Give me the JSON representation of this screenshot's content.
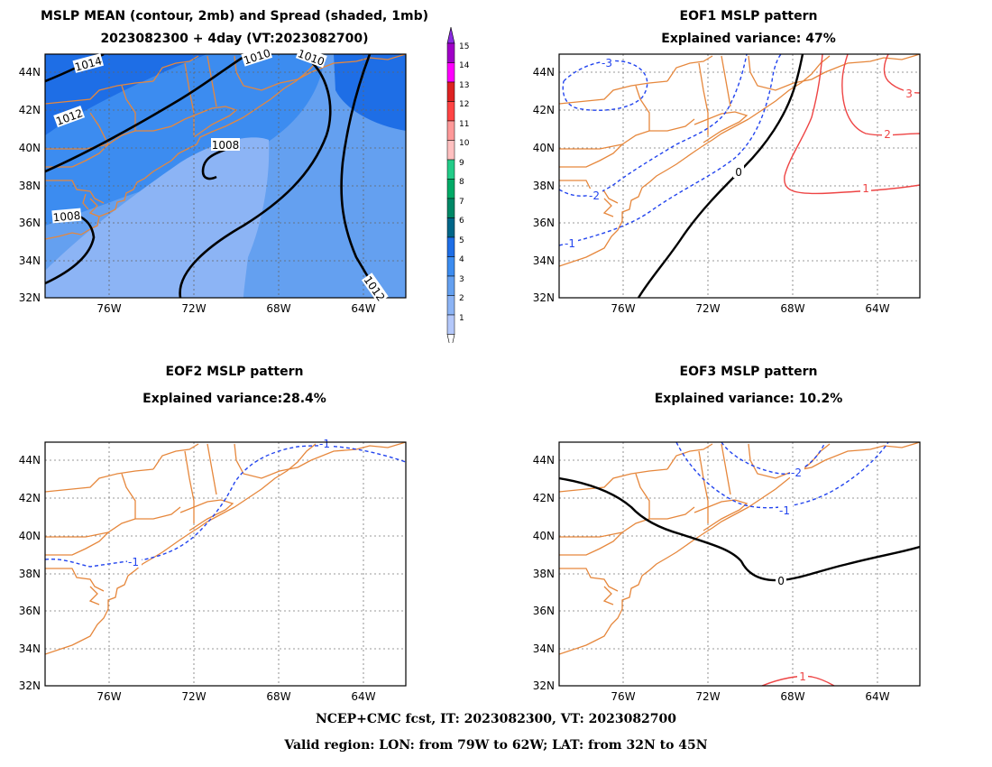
{
  "panels": {
    "mean": {
      "title_line1": "MSLP MEAN (contour, 2mb) and Spread (shaded, 1mb)",
      "title_line2": "2023082300 + 4day (VT:2023082700)",
      "contour_labels": [
        "1014",
        "1012",
        "1010",
        "1010",
        "1008",
        "1008",
        "1012"
      ]
    },
    "eof1": {
      "title_line1": "EOF1 MSLP pattern",
      "title_line2": "Explained variance: 47%",
      "contour_labels": [
        "-3",
        "-2",
        "-1",
        "0",
        "1",
        "2",
        "3"
      ]
    },
    "eof2": {
      "title_line1": "EOF2 MSLP pattern",
      "title_line2": "Explained variance:28.4%",
      "contour_labels": [
        "-1",
        "-1"
      ]
    },
    "eof3": {
      "title_line1": "EOF3 MSLP pattern",
      "title_line2": "Explained variance: 10.2%",
      "contour_labels": [
        "-2",
        "-1",
        "0",
        "1"
      ]
    }
  },
  "axes": {
    "lat_ticks": [
      "44N",
      "42N",
      "40N",
      "38N",
      "36N",
      "34N",
      "32N"
    ],
    "lon_ticks": [
      "76W",
      "72W",
      "68W",
      "64W"
    ]
  },
  "colorbar": {
    "labels": [
      "15",
      "14",
      "13",
      "12",
      "11",
      "10",
      "9",
      "8",
      "7",
      "6",
      "5",
      "4",
      "3",
      "2",
      "1"
    ],
    "colors": [
      "#a000c8",
      "#ff00ff",
      "#dd2222",
      "#ff4444",
      "#ff9999",
      "#ffc0c0",
      "#22cc88",
      "#00aa66",
      "#008866",
      "#006688",
      "#1e6ee6",
      "#3c8cf0",
      "#64a0f0",
      "#8cb4f5",
      "#b4c8fa"
    ],
    "top_arrow": "#8a2be2"
  },
  "colors": {
    "coast": "#e6873c",
    "grid": "#888888",
    "positive": "#ee4444",
    "negative": "#2244ee",
    "zero": "#000000"
  },
  "footer": {
    "line1": "NCEP+CMC fcst, IT: 2023082300, VT: 2023082700",
    "line2": "Valid region: LON: from 79W to 62W; LAT: from 32N to 45N"
  }
}
